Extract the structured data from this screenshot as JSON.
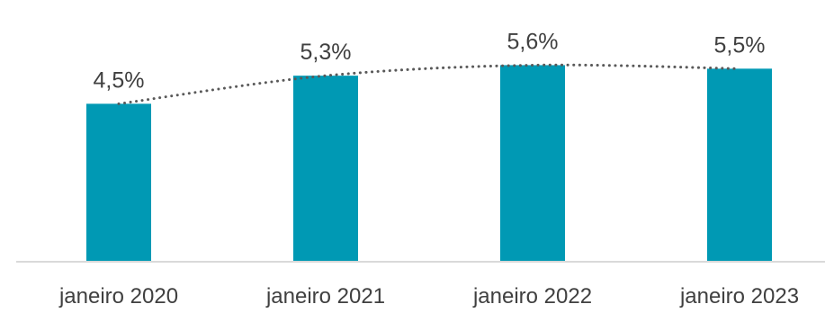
{
  "chart_data": {
    "type": "bar",
    "categories": [
      "janeiro  2020",
      "janeiro 2021",
      "janeiro  2022",
      "janeiro  2023"
    ],
    "values": [
      4.5,
      5.3,
      5.6,
      5.5
    ],
    "data_labels": [
      "4,5%",
      "5,3%",
      "5,6%",
      "5,5%"
    ],
    "unit": "%",
    "ylim": [
      0,
      7.2
    ],
    "grid": false,
    "legend": "none",
    "trendline": "dotted-polynomial",
    "colors": {
      "bar": "#0099b4",
      "trendline": "#595959",
      "axis": "#d9d9d9",
      "text": "#404040"
    }
  }
}
